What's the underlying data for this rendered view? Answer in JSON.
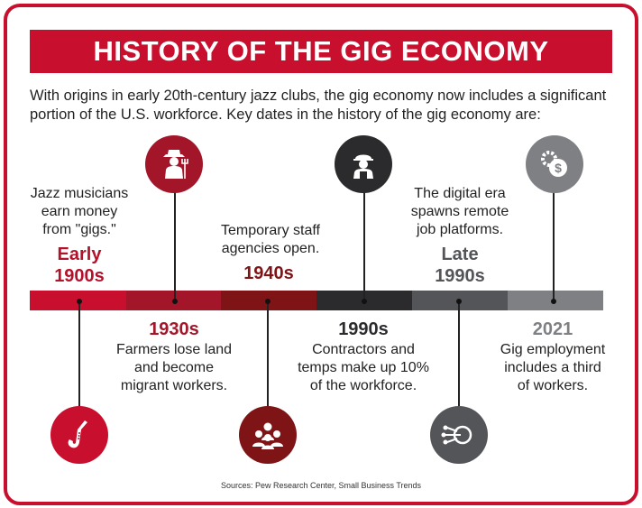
{
  "title": "HISTORY OF THE GIG ECONOMY",
  "intro": "With origins in early 20th-century jazz clubs, the gig economy now includes a significant portion of the U.S. workforce. Key dates in the history of the gig economy are:",
  "colors": {
    "brand_red": "#c8102e",
    "seg_1": "#c8102e",
    "seg_2": "#a3162a",
    "seg_3": "#7f1416",
    "seg_4": "#2b2b2e",
    "seg_5": "#545558",
    "seg_6": "#7f8083"
  },
  "events": [
    {
      "era_line1": "Early",
      "era_line2": "1900s",
      "desc_lines": [
        "Jazz musicians",
        "earn money",
        "from \"gigs.\""
      ],
      "icon": "saxophone-icon"
    },
    {
      "era_line1": "1930s",
      "desc_lines": [
        "Farmers lose land",
        "and become",
        "migrant workers."
      ],
      "icon": "farmer-icon"
    },
    {
      "era_line1": "1940s",
      "desc_lines": [
        "Temporary staff",
        "agencies open."
      ],
      "icon": "group-people-icon"
    },
    {
      "era_line1": "1990s",
      "desc_lines": [
        "Contractors and",
        "temps make up 10%",
        "of the workforce."
      ],
      "icon": "construction-worker-icon"
    },
    {
      "era_line1": "Late",
      "era_line2": "1990s",
      "desc_lines": [
        "The digital era",
        "spawns remote",
        "job platforms."
      ],
      "icon": "network-icon"
    },
    {
      "era_line1": "2021",
      "desc_lines": [
        "Gig employment",
        "includes a third",
        "of workers."
      ],
      "icon": "gear-dollar-icon"
    }
  ],
  "sources": "Sources: Pew Research Center, Small Business Trends"
}
